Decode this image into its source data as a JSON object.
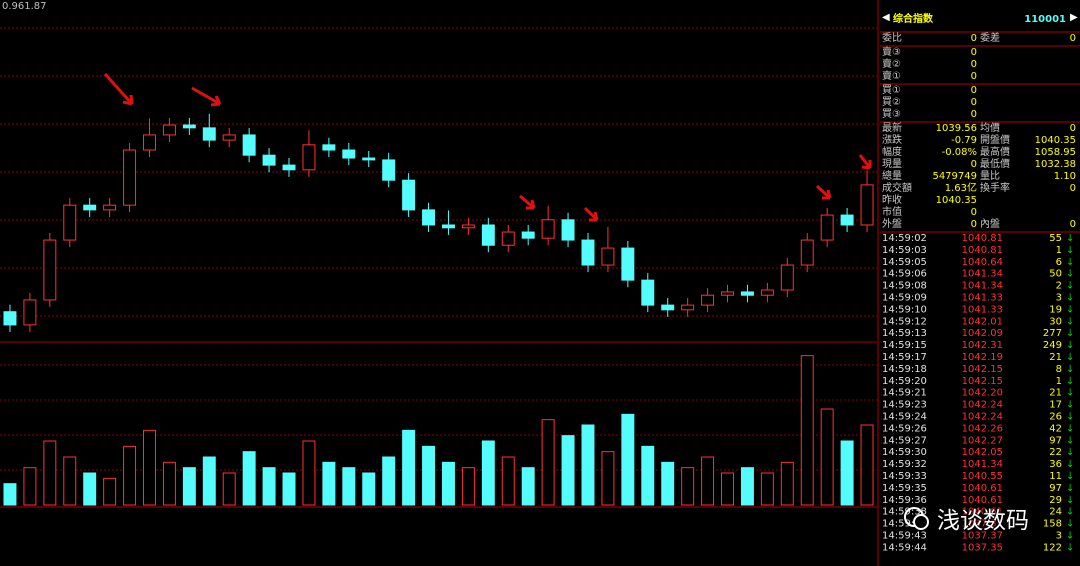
{
  "chart_data": {
    "type": "candlestick",
    "corner_label": "0.961.87",
    "open": [
      1006.0,
      1003.2,
      1008.5,
      1021.2,
      1028.6,
      1027.6,
      1028.6,
      1040.3,
      1043.5,
      1045.6,
      1045.0,
      1042.4,
      1043.5,
      1039.2,
      1037.1,
      1036.1,
      1041.4,
      1040.3,
      1038.6,
      1038.2,
      1033.9,
      1027.6,
      1024.4,
      1023.8,
      1024.4,
      1020.1,
      1022.9,
      1021.6,
      1025.5,
      1021.2,
      1015.9,
      1019.5,
      1012.7,
      1007.4,
      1006.4,
      1007.4,
      1009.5,
      1010.2,
      1009.5,
      1010.6,
      1015.9,
      1021.2,
      1026.5,
      1024.4
    ],
    "high": [
      1007.5,
      1010.0,
      1022.7,
      1030.1,
      1030.1,
      1030.1,
      1041.8,
      1047.0,
      1047.1,
      1047.1,
      1048.0,
      1045.0,
      1045.0,
      1040.7,
      1038.6,
      1044.5,
      1042.9,
      1041.8,
      1040.1,
      1039.7,
      1035.4,
      1029.1,
      1027.5,
      1025.9,
      1025.9,
      1024.4,
      1024.4,
      1028.5,
      1027.0,
      1022.7,
      1024.0,
      1021.0,
      1014.2,
      1008.9,
      1008.9,
      1011.0,
      1011.7,
      1011.7,
      1012.1,
      1017.4,
      1022.7,
      1028.0,
      1028.0,
      1036.0
    ],
    "low": [
      1001.7,
      1001.7,
      1007.0,
      1019.7,
      1026.1,
      1026.1,
      1027.1,
      1038.8,
      1042.0,
      1043.5,
      1040.9,
      1040.9,
      1037.7,
      1035.6,
      1034.6,
      1034.6,
      1038.8,
      1037.1,
      1036.7,
      1032.4,
      1026.1,
      1022.9,
      1022.3,
      1022.3,
      1018.6,
      1018.6,
      1020.1,
      1020.1,
      1019.7,
      1014.4,
      1014.4,
      1011.2,
      1005.9,
      1004.9,
      1004.9,
      1005.9,
      1008.0,
      1008.0,
      1008.0,
      1009.1,
      1014.4,
      1019.7,
      1022.9,
      1022.9
    ],
    "close": [
      1003.2,
      1008.5,
      1021.2,
      1028.6,
      1027.6,
      1028.6,
      1040.3,
      1043.5,
      1045.6,
      1045.0,
      1042.4,
      1043.5,
      1039.2,
      1037.1,
      1036.1,
      1041.4,
      1040.3,
      1038.6,
      1038.2,
      1033.9,
      1027.6,
      1024.4,
      1023.8,
      1024.4,
      1020.1,
      1022.9,
      1021.6,
      1025.5,
      1021.2,
      1015.9,
      1019.5,
      1012.7,
      1007.4,
      1006.4,
      1007.4,
      1009.5,
      1010.2,
      1009.5,
      1010.6,
      1015.9,
      1021.2,
      1026.5,
      1024.4,
      1032.9
    ],
    "ylim": [
      1000,
      1070
    ],
    "volume": {
      "values": [
        20,
        35,
        60,
        45,
        30,
        25,
        55,
        70,
        40,
        35,
        45,
        30,
        50,
        35,
        30,
        60,
        40,
        35,
        30,
        45,
        70,
        55,
        40,
        35,
        60,
        45,
        35,
        80,
        65,
        75,
        50,
        85,
        55,
        40,
        35,
        45,
        30,
        35,
        30,
        40,
        140,
        90,
        60,
        75
      ],
      "ylim": [
        0,
        150
      ]
    },
    "up_color": "#ff3232",
    "down_color": "#54fcfc"
  },
  "quote_panel": {
    "name": "综合指数",
    "code": "110001",
    "groups": [
      [
        [
          "委比",
          "0",
          "委差",
          "0"
        ]
      ],
      [
        [
          "賣③",
          "0"
        ],
        [
          "賣②",
          "0"
        ],
        [
          "賣①",
          "0"
        ]
      ],
      [
        [
          "買①",
          "0"
        ],
        [
          "買②",
          "0"
        ],
        [
          "買③",
          "0"
        ]
      ],
      [
        [
          "最新",
          "1039.56",
          "均價",
          "0"
        ],
        [
          "漲跌",
          "-0.79",
          "開盤價",
          "1040.35"
        ],
        [
          "幅度",
          "-0.08%",
          "最高價",
          "1058.95"
        ],
        [
          "現量",
          "0",
          "最低價",
          "1032.38"
        ],
        [
          "總量",
          "5479749",
          "量比",
          "1.10"
        ],
        [
          "成交額",
          "1.63亿",
          "換手率",
          "0"
        ],
        [
          "昨收",
          "1040.35"
        ],
        [
          "市值",
          "0"
        ],
        [
          "外盤",
          "0",
          "內盤",
          "0"
        ]
      ]
    ],
    "ticks": [
      [
        "14:59:02",
        "1040.81",
        "55",
        "↓"
      ],
      [
        "14:59:03",
        "1040.81",
        "1",
        "↓"
      ],
      [
        "14:59:05",
        "1040.64",
        "6",
        "↓"
      ],
      [
        "14:59:06",
        "1041.34",
        "50",
        "↓"
      ],
      [
        "14:59:08",
        "1041.34",
        "2",
        "↓"
      ],
      [
        "14:59:09",
        "1041.33",
        "3",
        "↓"
      ],
      [
        "14:59:10",
        "1041.33",
        "19",
        "↓"
      ],
      [
        "14:59:12",
        "1042.01",
        "30",
        "↓"
      ],
      [
        "14:59:13",
        "1042.09",
        "277",
        "↓"
      ],
      [
        "14:59:15",
        "1042.31",
        "249",
        "↓"
      ],
      [
        "14:59:17",
        "1042.19",
        "21",
        "↓"
      ],
      [
        "14:59:18",
        "1042.15",
        "8",
        "↓"
      ],
      [
        "14:59:20",
        "1042.15",
        "1",
        "↓"
      ],
      [
        "14:59:21",
        "1042.20",
        "21",
        "↓"
      ],
      [
        "14:59:23",
        "1042.24",
        "17",
        "↓"
      ],
      [
        "14:59:24",
        "1042.24",
        "26",
        "↓"
      ],
      [
        "14:59:26",
        "1042.26",
        "42",
        "↓"
      ],
      [
        "14:59:27",
        "1042.27",
        "97",
        "↓"
      ],
      [
        "14:59:30",
        "1042.05",
        "22",
        "↓"
      ],
      [
        "14:59:32",
        "1041.34",
        "36",
        "↓"
      ],
      [
        "14:59:33",
        "1040.55",
        "11",
        "↓"
      ],
      [
        "14:59:35",
        "1040.61",
        "97",
        "↓"
      ],
      [
        "14:59:36",
        "1040.61",
        "29",
        "↓"
      ],
      [
        "14:59:38",
        "1040.61",
        "24",
        "↓"
      ],
      [
        "14:59:41",
        "1037.37",
        "158",
        "↓"
      ],
      [
        "14:59:43",
        "1037.37",
        "3",
        "↓"
      ],
      [
        "14:59:44",
        "1037.35",
        "122",
        "↓"
      ]
    ]
  },
  "watermark": "浅谈数码"
}
